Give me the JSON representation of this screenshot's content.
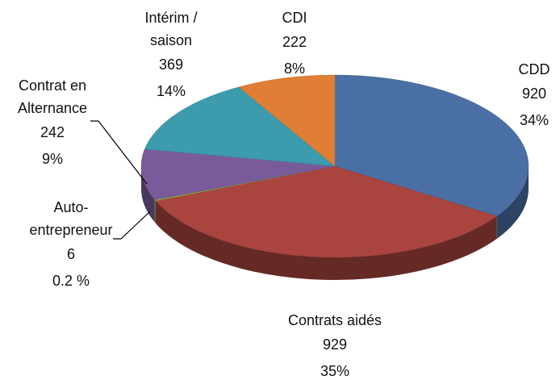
{
  "chart_data": {
    "type": "pie3d",
    "categories": [
      "CDD",
      "Contrats aidés",
      "Auto-\nentrepreneur",
      "Contrat en\nAlternance",
      "Intérim /\nsaison",
      "CDI"
    ],
    "values": [
      920,
      929,
      6,
      242,
      369,
      222
    ],
    "percent_labels": [
      "34%",
      "35%",
      "0.2 %",
      "9%",
      "14%",
      "8%"
    ],
    "colors": [
      "#4a6fa5",
      "#a9443f",
      "#8ea64a",
      "#7a5b9a",
      "#3d9bae",
      "#e07e36"
    ]
  }
}
